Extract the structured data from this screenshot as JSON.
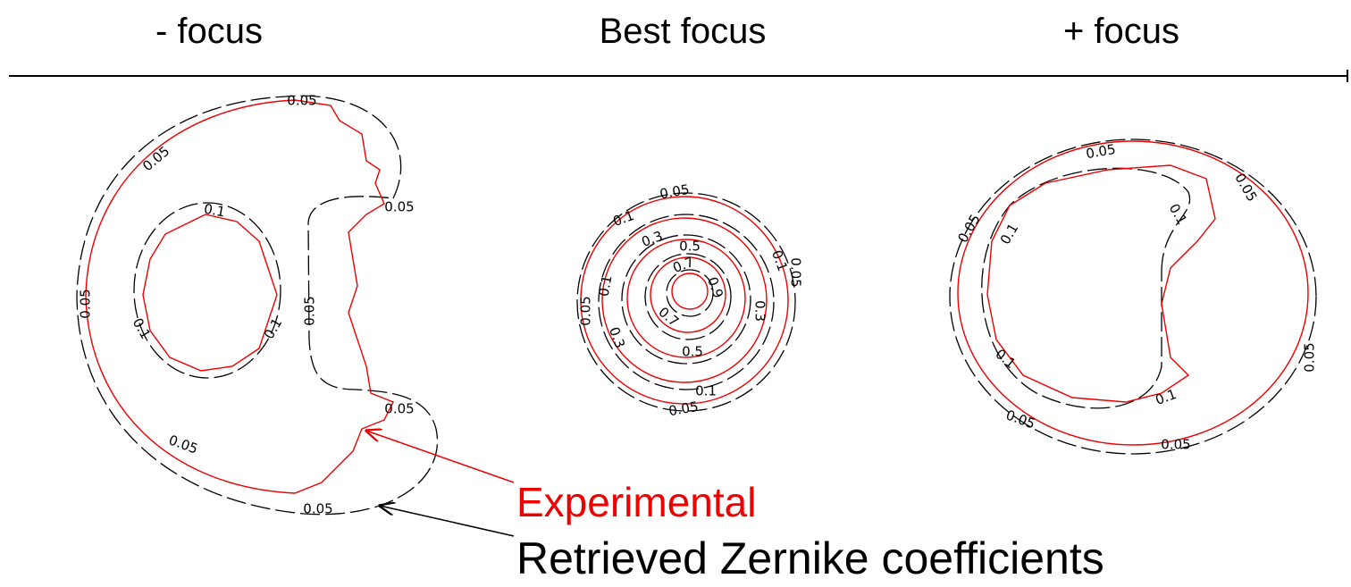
{
  "header": {
    "labels": [
      "- focus",
      "Best focus",
      "+ focus"
    ]
  },
  "panels": [
    {
      "contour_labels": [
        "0.05",
        "0.05",
        "0.1",
        "0.05",
        "0.05",
        "0.1",
        "0.1",
        "0.05",
        "0.05",
        "0.05",
        "0.05"
      ]
    },
    {
      "contour_labels": [
        "0.05",
        "0.1",
        "0.3",
        "0.5",
        "0.7",
        "0.9",
        "0.1",
        "0.05",
        "0.05",
        "0.1",
        "0.3",
        "0.7",
        "0.5",
        "0.3",
        "0.1",
        "0.05"
      ]
    },
    {
      "contour_labels": [
        "0.05",
        "0.05",
        "0.05",
        "0.1",
        "0.1",
        "0.1",
        "0.1",
        "0.05",
        "0.05",
        "0.05"
      ]
    }
  ],
  "legend": {
    "experimental": "Experimental",
    "retrieved": "Retrieved Zernike coefficients"
  }
}
